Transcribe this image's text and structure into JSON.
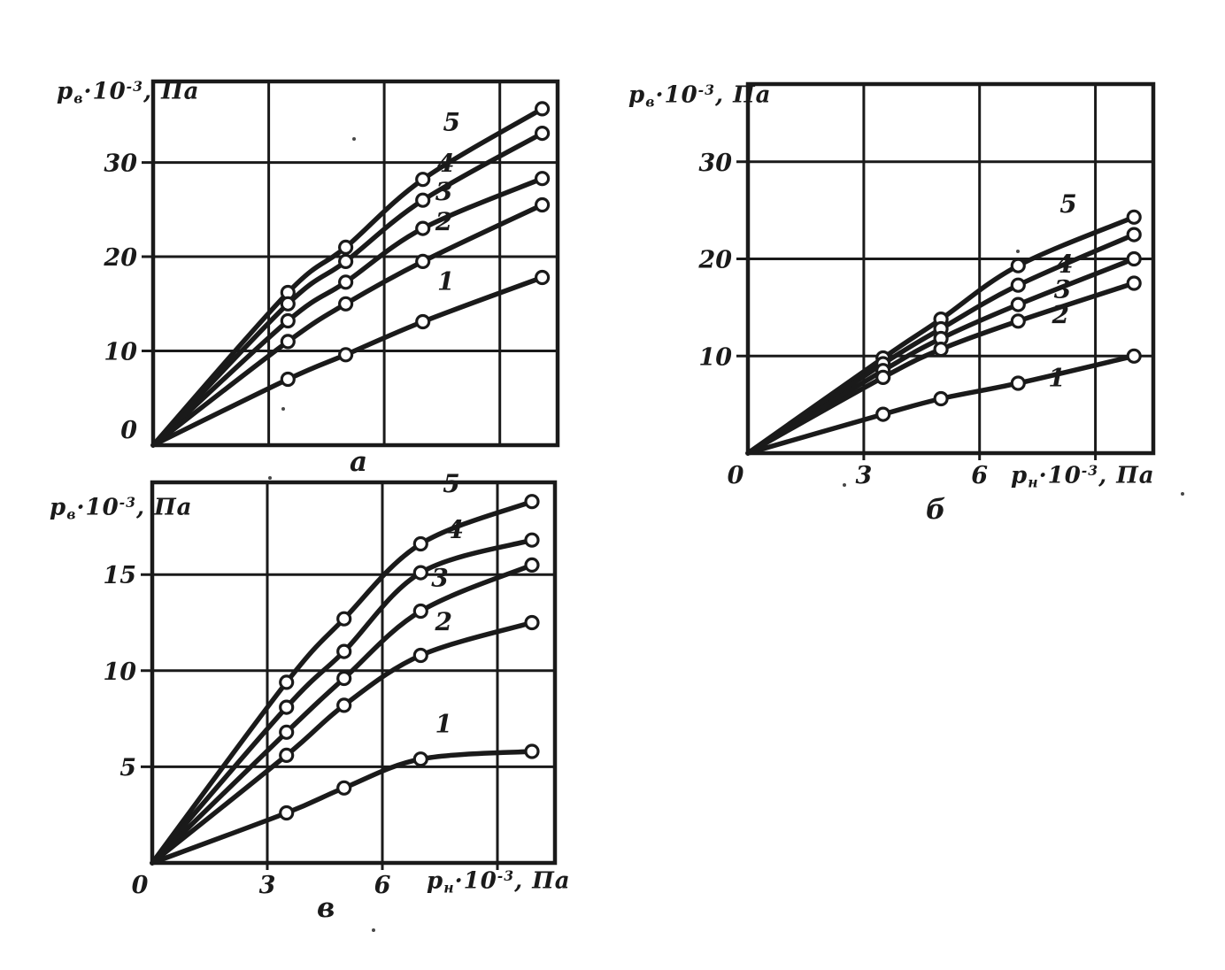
{
  "figure": {
    "paper_color": "#ffffff",
    "ink_color": "#1a1a1a",
    "axis_labels": {
      "y": {
        "sym": "p",
        "sub": "в",
        "factor": "·10",
        "exp": "-3",
        "unit": ", Па"
      },
      "x": {
        "sym": "p",
        "sub": "н",
        "factor": "·10",
        "exp": "-3",
        "unit": ", Па"
      }
    }
  },
  "chart_data": [
    {
      "id": "a",
      "type": "line",
      "caption": "а",
      "ylabel": "pв·10⁻³, Па",
      "xlabel": null,
      "x_range": [
        0,
        10.5
      ],
      "y_range": [
        0,
        38.6
      ],
      "x_gridlines": [
        3,
        6,
        9
      ],
      "y_gridlines": [
        10,
        20,
        30
      ],
      "x_ticks": [],
      "y_ticks": [
        {
          "value": 0,
          "label": "0"
        },
        {
          "value": 10,
          "label": "10"
        },
        {
          "value": 20,
          "label": "20"
        },
        {
          "value": 30,
          "label": "30"
        }
      ],
      "series": [
        {
          "name": "5",
          "label_at": [
            7.75,
            33.4
          ],
          "points": [
            [
              0,
              0
            ],
            [
              3.5,
              16.2
            ],
            [
              5,
              21.0
            ],
            [
              7,
              28.2
            ],
            [
              10.1,
              35.7
            ]
          ]
        },
        {
          "name": "4",
          "label_at": [
            7.6,
            29.0
          ],
          "points": [
            [
              0,
              0
            ],
            [
              3.5,
              15.0
            ],
            [
              5,
              19.5
            ],
            [
              7,
              26.0
            ],
            [
              10.1,
              33.1
            ]
          ]
        },
        {
          "name": "3",
          "label_at": [
            7.55,
            26.0
          ],
          "points": [
            [
              0,
              0
            ],
            [
              3.5,
              13.2
            ],
            [
              5,
              17.3
            ],
            [
              7,
              23.0
            ],
            [
              10.1,
              28.3
            ]
          ]
        },
        {
          "name": "2",
          "label_at": [
            7.55,
            22.8
          ],
          "points": [
            [
              0,
              0
            ],
            [
              3.5,
              11.0
            ],
            [
              5,
              15.0
            ],
            [
              7,
              19.5
            ],
            [
              10.1,
              25.5
            ]
          ]
        },
        {
          "name": "1",
          "label_at": [
            7.6,
            16.5
          ],
          "points": [
            [
              0,
              0
            ],
            [
              3.5,
              7.0
            ],
            [
              5,
              9.6
            ],
            [
              7,
              13.1
            ],
            [
              10.1,
              17.8
            ]
          ]
        }
      ]
    },
    {
      "id": "b",
      "type": "line",
      "caption": "б",
      "ylabel": "pв·10⁻³, Па",
      "xlabel": "pн·10⁻³, Па",
      "x_range": [
        0,
        10.5
      ],
      "y_range": [
        0,
        38
      ],
      "x_gridlines": [
        3,
        6,
        9
      ],
      "y_gridlines": [
        10,
        20,
        30
      ],
      "x_ticks": [
        {
          "value": 0,
          "label": "0"
        },
        {
          "value": 3,
          "label": "3"
        },
        {
          "value": 6,
          "label": "6"
        }
      ],
      "y_ticks": [
        {
          "value": 10,
          "label": "10"
        },
        {
          "value": 20,
          "label": "20"
        },
        {
          "value": 30,
          "label": "30"
        }
      ],
      "series": [
        {
          "name": "5",
          "label_at": [
            8.3,
            24.8
          ],
          "points": [
            [
              0,
              0
            ],
            [
              3.5,
              9.8
            ],
            [
              5,
              13.8
            ],
            [
              7,
              19.3
            ],
            [
              10,
              24.3
            ]
          ]
        },
        {
          "name": "4",
          "label_at": [
            8.2,
            18.6
          ],
          "points": [
            [
              0,
              0
            ],
            [
              3.5,
              9.2
            ],
            [
              5,
              12.8
            ],
            [
              7,
              17.3
            ],
            [
              10,
              22.5
            ]
          ]
        },
        {
          "name": "3",
          "label_at": [
            8.15,
            16.0
          ],
          "points": [
            [
              0,
              0
            ],
            [
              3.5,
              8.5
            ],
            [
              5,
              11.8
            ],
            [
              7,
              15.3
            ],
            [
              10,
              20.0
            ]
          ]
        },
        {
          "name": "2",
          "label_at": [
            8.1,
            13.4
          ],
          "points": [
            [
              0,
              0
            ],
            [
              3.5,
              7.8
            ],
            [
              5,
              10.7
            ],
            [
              7,
              13.6
            ],
            [
              10,
              17.5
            ]
          ]
        },
        {
          "name": "1",
          "label_at": [
            8.0,
            6.9
          ],
          "points": [
            [
              0,
              0
            ],
            [
              3.5,
              4.0
            ],
            [
              5,
              5.6
            ],
            [
              7,
              7.2
            ],
            [
              10,
              10.0
            ]
          ]
        }
      ]
    },
    {
      "id": "v",
      "type": "line",
      "caption": "в",
      "ylabel": "pв·10⁻³, Па",
      "xlabel": "pн·10⁻³, Па",
      "x_range": [
        0,
        10.5
      ],
      "y_range": [
        0,
        19.8
      ],
      "x_gridlines": [
        3,
        6,
        9
      ],
      "y_gridlines": [
        5,
        10,
        15
      ],
      "x_ticks": [
        {
          "value": 0,
          "label": "0"
        },
        {
          "value": 3,
          "label": "3"
        },
        {
          "value": 6,
          "label": "6"
        }
      ],
      "y_ticks": [
        {
          "value": 5,
          "label": "5"
        },
        {
          "value": 10,
          "label": "10"
        },
        {
          "value": 15,
          "label": "15"
        }
      ],
      "series": [
        {
          "name": "5",
          "label_at": [
            7.8,
            19.3
          ],
          "points": [
            [
              0,
              0
            ],
            [
              3.5,
              9.4
            ],
            [
              5,
              12.7
            ],
            [
              7,
              16.6
            ],
            [
              9.9,
              18.8
            ]
          ]
        },
        {
          "name": "4",
          "label_at": [
            7.9,
            16.9
          ],
          "points": [
            [
              0,
              0
            ],
            [
              3.5,
              8.1
            ],
            [
              5,
              11.0
            ],
            [
              7,
              15.1
            ],
            [
              9.9,
              16.8
            ]
          ]
        },
        {
          "name": "3",
          "label_at": [
            7.5,
            14.4
          ],
          "points": [
            [
              0,
              0
            ],
            [
              3.5,
              6.8
            ],
            [
              5,
              9.6
            ],
            [
              7,
              13.1
            ],
            [
              9.9,
              15.5
            ]
          ]
        },
        {
          "name": "2",
          "label_at": [
            7.6,
            12.1
          ],
          "points": [
            [
              0,
              0
            ],
            [
              3.5,
              5.6
            ],
            [
              5,
              8.2
            ],
            [
              7,
              10.8
            ],
            [
              9.9,
              12.5
            ]
          ]
        },
        {
          "name": "1",
          "label_at": [
            7.6,
            6.8
          ],
          "points": [
            [
              0,
              0
            ],
            [
              3.5,
              2.6
            ],
            [
              5,
              3.9
            ],
            [
              7,
              5.4
            ],
            [
              9.9,
              5.8
            ]
          ]
        }
      ]
    }
  ]
}
